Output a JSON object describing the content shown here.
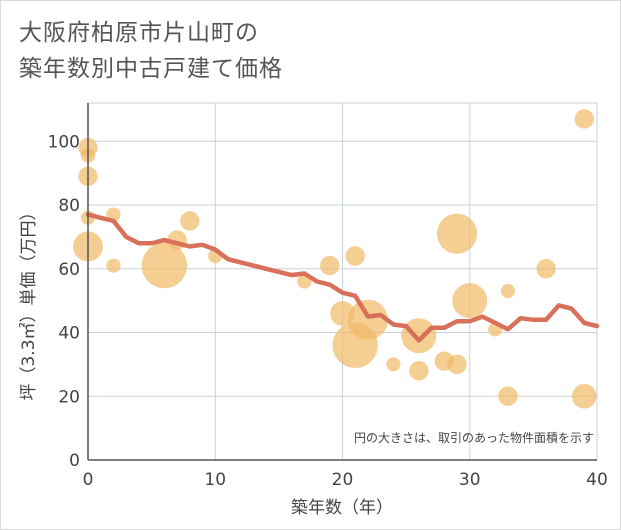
{
  "chart_data": {
    "type": "scatter",
    "title_lines": [
      "大阪府柏原市片山町の",
      "築年数別中古戸建て価格"
    ],
    "xlabel": "築年数（年）",
    "ylabel": "坪（3.3㎡）単価（万円）",
    "xlim": [
      0,
      40
    ],
    "ylim": [
      0,
      112
    ],
    "xticks": [
      0,
      10,
      20,
      30,
      40
    ],
    "yticks": [
      0,
      20,
      40,
      60,
      80,
      100
    ],
    "note": "円の大きさは、取引のあった物件面積を示す",
    "colors": {
      "bubble": "#f0bb6a",
      "line": "#d9705a",
      "grid": "#c9d3dc",
      "axis": "#555555"
    },
    "bubbles": [
      {
        "x": 0,
        "y": 98,
        "size": 2
      },
      {
        "x": 0,
        "y": 95.5,
        "size": 1
      },
      {
        "x": 0,
        "y": 89,
        "size": 2
      },
      {
        "x": 0,
        "y": 76,
        "size": 1
      },
      {
        "x": 0,
        "y": 67,
        "size": 4
      },
      {
        "x": 2,
        "y": 77,
        "size": 1
      },
      {
        "x": 2,
        "y": 61,
        "size": 1
      },
      {
        "x": 6,
        "y": 61,
        "size": 7
      },
      {
        "x": 7,
        "y": 69,
        "size": 2
      },
      {
        "x": 8,
        "y": 75,
        "size": 2
      },
      {
        "x": 10,
        "y": 64,
        "size": 1
      },
      {
        "x": 17,
        "y": 56,
        "size": 1
      },
      {
        "x": 19,
        "y": 61,
        "size": 2
      },
      {
        "x": 20,
        "y": 46,
        "size": 3
      },
      {
        "x": 21,
        "y": 64,
        "size": 2
      },
      {
        "x": 21,
        "y": 36,
        "size": 7
      },
      {
        "x": 22,
        "y": 44,
        "size": 6
      },
      {
        "x": 24,
        "y": 30,
        "size": 1
      },
      {
        "x": 26,
        "y": 39,
        "size": 5
      },
      {
        "x": 26,
        "y": 28,
        "size": 2
      },
      {
        "x": 28,
        "y": 31,
        "size": 2
      },
      {
        "x": 29,
        "y": 71,
        "size": 6
      },
      {
        "x": 29,
        "y": 30,
        "size": 2
      },
      {
        "x": 30,
        "y": 50,
        "size": 5
      },
      {
        "x": 32,
        "y": 41,
        "size": 1
      },
      {
        "x": 33,
        "y": 53,
        "size": 1
      },
      {
        "x": 33,
        "y": 20,
        "size": 2
      },
      {
        "x": 36,
        "y": 60,
        "size": 2
      },
      {
        "x": 39,
        "y": 107,
        "size": 2
      },
      {
        "x": 39,
        "y": 20,
        "size": 3
      }
    ],
    "trend": [
      {
        "x": 0,
        "y": 77
      },
      {
        "x": 1,
        "y": 76
      },
      {
        "x": 2,
        "y": 75
      },
      {
        "x": 3,
        "y": 70
      },
      {
        "x": 4,
        "y": 68
      },
      {
        "x": 5,
        "y": 68
      },
      {
        "x": 6,
        "y": 69
      },
      {
        "x": 7,
        "y": 68
      },
      {
        "x": 8,
        "y": 67
      },
      {
        "x": 9,
        "y": 67.5
      },
      {
        "x": 10,
        "y": 66
      },
      {
        "x": 11,
        "y": 63
      },
      {
        "x": 12,
        "y": 62
      },
      {
        "x": 13,
        "y": 61
      },
      {
        "x": 14,
        "y": 60
      },
      {
        "x": 15,
        "y": 59
      },
      {
        "x": 16,
        "y": 58
      },
      {
        "x": 17,
        "y": 58.5
      },
      {
        "x": 18,
        "y": 56
      },
      {
        "x": 19,
        "y": 55
      },
      {
        "x": 20,
        "y": 52.5
      },
      {
        "x": 21,
        "y": 51.5
      },
      {
        "x": 22,
        "y": 45
      },
      {
        "x": 23,
        "y": 45.5
      },
      {
        "x": 24,
        "y": 42.5
      },
      {
        "x": 25,
        "y": 42
      },
      {
        "x": 26,
        "y": 37.5
      },
      {
        "x": 27,
        "y": 41.5
      },
      {
        "x": 28,
        "y": 41.5
      },
      {
        "x": 29,
        "y": 43.5
      },
      {
        "x": 30,
        "y": 43.5
      },
      {
        "x": 31,
        "y": 45
      },
      {
        "x": 32,
        "y": 43
      },
      {
        "x": 33,
        "y": 41
      },
      {
        "x": 34,
        "y": 44.5
      },
      {
        "x": 35,
        "y": 44
      },
      {
        "x": 36,
        "y": 44
      },
      {
        "x": 37,
        "y": 48.5
      },
      {
        "x": 38,
        "y": 47.5
      },
      {
        "x": 39,
        "y": 43
      },
      {
        "x": 40,
        "y": 42
      }
    ]
  }
}
